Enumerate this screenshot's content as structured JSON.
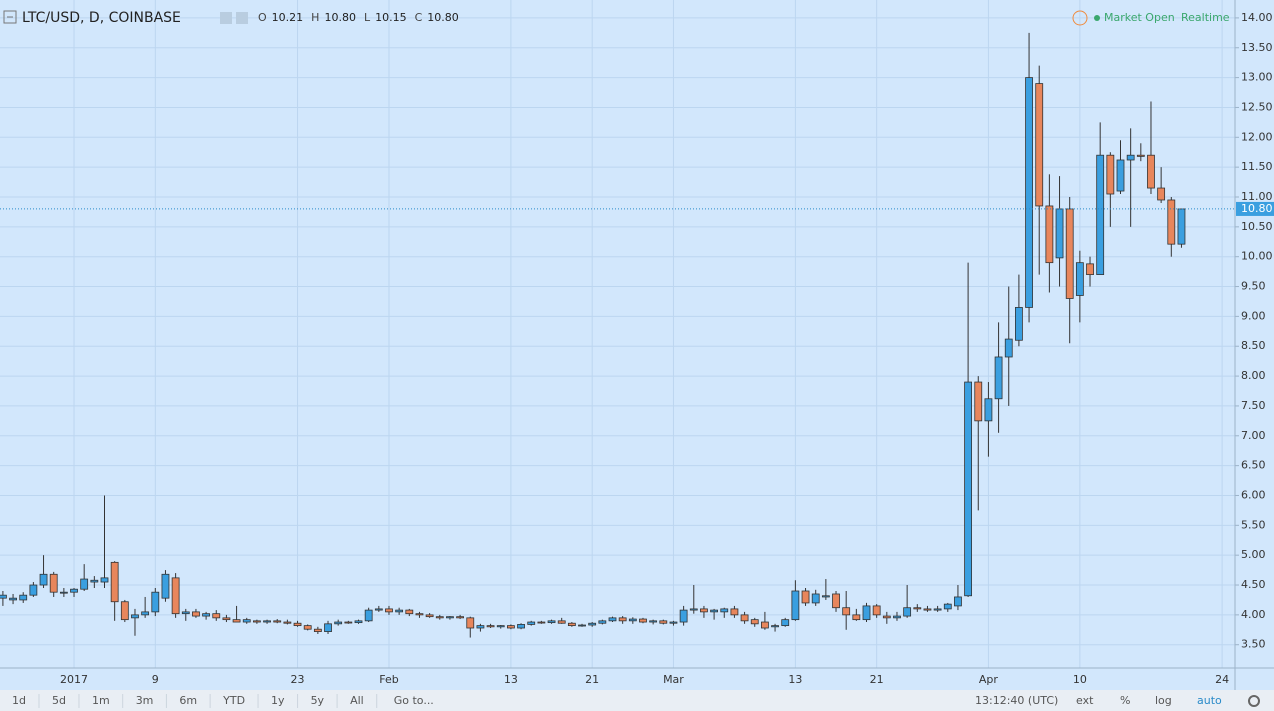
{
  "chart_data": {
    "type": "candlestick",
    "title": "LTC/USD, D, COINBASE",
    "legend": [
      {
        "name": "O",
        "value": 10.21
      },
      {
        "name": "H",
        "value": {
          "value": 10.8,
          "label": "10.80"
        }
      },
      {
        "name": "L",
        "value": 10.15
      },
      {
        "name": "C",
        "value": {
          "value": 10.8,
          "label": "10.80"
        }
      }
    ],
    "status": {
      "market": "Market Open",
      "feed": "Realtime"
    },
    "up_color": "#3a9fe0",
    "down_color": "#e8865c",
    "grid": true,
    "last_price": {
      "value": 10.8,
      "label": "10.80"
    },
    "categories": [
      null,
      null,
      null,
      null,
      null,
      null,
      null,
      "2017",
      null,
      null,
      null,
      null,
      null,
      null,
      null,
      "9",
      null,
      null,
      null,
      null,
      null,
      null,
      null,
      null,
      null,
      null,
      null,
      null,
      null,
      "23",
      null,
      null,
      null,
      null,
      null,
      null,
      null,
      null,
      "Feb",
      null,
      null,
      null,
      null,
      null,
      null,
      null,
      null,
      null,
      null,
      null,
      "13",
      null,
      null,
      null,
      null,
      null,
      null,
      null,
      "21",
      null,
      null,
      null,
      null,
      null,
      null,
      null,
      "Mar",
      null,
      null,
      null,
      null,
      null,
      null,
      null,
      null,
      null,
      null,
      null,
      "13",
      null,
      null,
      null,
      null,
      null,
      null,
      null,
      "21",
      null,
      null,
      null,
      null,
      null,
      null,
      null,
      null,
      null,
      null,
      "Apr",
      null,
      null,
      null,
      null,
      null,
      null,
      null,
      null,
      "10",
      null,
      null,
      null,
      null,
      null,
      null,
      null,
      null,
      null,
      null,
      null,
      null,
      null,
      "24"
    ],
    "open": [
      4.28,
      4.25,
      4.25,
      4.33,
      4.5,
      4.68,
      4.38,
      4.38,
      4.43,
      4.55,
      4.55,
      4.88,
      4.22,
      3.95,
      4.0,
      4.05,
      4.28,
      4.62,
      4.02,
      4.05,
      3.98,
      4.02,
      3.95,
      3.92,
      3.88,
      3.9,
      3.88,
      3.9,
      3.88,
      3.86,
      3.82,
      3.76,
      3.72,
      3.85,
      3.88,
      3.87,
      3.9,
      4.08,
      4.1,
      4.05,
      4.08,
      4.02,
      4.0,
      3.97,
      3.95,
      3.97,
      3.95,
      3.78,
      3.82,
      3.8,
      3.82,
      3.78,
      3.84,
      3.88,
      3.87,
      3.9,
      3.86,
      3.82,
      3.83,
      3.86,
      3.9,
      3.95,
      3.9,
      3.93,
      3.88,
      3.9,
      3.86,
      3.88,
      4.08,
      4.1,
      4.05,
      4.05,
      4.1,
      4.0,
      3.92,
      3.88,
      3.8,
      3.82,
      3.92,
      4.4,
      4.2,
      4.3,
      4.35,
      4.12,
      4.0,
      3.92,
      4.15,
      3.98,
      3.95,
      3.98,
      4.12,
      4.1,
      4.08,
      4.1,
      4.15,
      4.32,
      7.9,
      7.25,
      7.62,
      8.32,
      8.6,
      9.15,
      12.9,
      10.85,
      9.98,
      10.8,
      9.35,
      9.88,
      9.7,
      11.7,
      11.1,
      11.62,
      11.7,
      11.7,
      11.15,
      10.95,
      10.21,
      null,
      null,
      null,
      null
    ],
    "high": [
      4.4,
      4.35,
      4.38,
      4.55,
      5.0,
      4.72,
      4.45,
      4.45,
      4.85,
      4.65,
      6.0,
      4.9,
      4.25,
      4.1,
      4.3,
      4.45,
      4.75,
      4.7,
      4.1,
      4.1,
      4.05,
      4.08,
      4.0,
      4.15,
      3.95,
      3.92,
      3.92,
      3.93,
      3.92,
      3.9,
      3.84,
      3.8,
      3.9,
      3.92,
      3.9,
      3.92,
      4.12,
      4.15,
      4.15,
      4.12,
      4.1,
      4.05,
      4.03,
      4.0,
      3.98,
      4.0,
      3.97,
      3.85,
      3.85,
      3.83,
      3.84,
      3.86,
      3.9,
      3.9,
      3.92,
      3.95,
      3.88,
      3.85,
      3.88,
      3.92,
      3.97,
      3.98,
      3.96,
      3.95,
      3.92,
      3.92,
      3.9,
      4.15,
      4.5,
      4.15,
      4.1,
      4.12,
      4.15,
      4.05,
      3.95,
      4.05,
      3.85,
      3.95,
      4.58,
      4.45,
      4.42,
      4.6,
      4.4,
      4.4,
      4.1,
      4.2,
      4.18,
      4.05,
      4.05,
      4.5,
      4.18,
      4.15,
      4.15,
      4.2,
      4.5,
      9.9,
      8.0,
      7.9,
      8.9,
      9.5,
      9.7,
      13.75,
      13.2,
      11.38,
      11.35,
      11.0,
      10.1,
      10.0,
      12.25,
      11.75,
      11.95,
      12.15,
      11.9,
      12.6,
      11.5,
      11.0,
      10.8,
      null,
      null,
      null,
      null
    ],
    "low": [
      4.15,
      4.18,
      4.2,
      4.3,
      4.45,
      4.3,
      4.3,
      4.3,
      4.4,
      4.45,
      4.45,
      3.9,
      3.88,
      3.65,
      3.95,
      3.98,
      4.22,
      3.95,
      3.9,
      3.95,
      3.92,
      3.9,
      3.88,
      3.88,
      3.85,
      3.85,
      3.85,
      3.86,
      3.84,
      3.8,
      3.74,
      3.68,
      3.68,
      3.82,
      3.85,
      3.85,
      3.88,
      4.05,
      4.0,
      4.0,
      3.98,
      3.95,
      3.95,
      3.92,
      3.92,
      3.93,
      3.62,
      3.72,
      3.78,
      3.77,
      3.76,
      3.76,
      3.82,
      3.85,
      3.85,
      3.85,
      3.8,
      3.8,
      3.8,
      3.84,
      3.88,
      3.85,
      3.85,
      3.86,
      3.84,
      3.84,
      3.82,
      3.82,
      4.02,
      3.95,
      3.92,
      3.95,
      3.95,
      3.85,
      3.8,
      3.75,
      3.72,
      3.8,
      3.9,
      4.15,
      4.15,
      4.25,
      4.05,
      3.75,
      3.9,
      3.88,
      3.95,
      3.85,
      3.9,
      3.95,
      4.05,
      4.05,
      4.05,
      4.05,
      4.08,
      4.3,
      5.75,
      6.65,
      7.05,
      7.5,
      8.5,
      8.9,
      9.7,
      9.4,
      9.5,
      8.55,
      8.9,
      9.5,
      9.7,
      10.5,
      11.05,
      10.5,
      11.6,
      11.05,
      10.9,
      10.0,
      10.15,
      null,
      null,
      null,
      null
    ],
    "close": [
      4.33,
      4.28,
      4.33,
      4.5,
      4.68,
      4.38,
      4.38,
      4.43,
      4.6,
      4.58,
      4.62,
      4.22,
      3.92,
      4.0,
      4.05,
      4.38,
      4.68,
      4.02,
      4.05,
      3.98,
      4.02,
      3.95,
      3.92,
      3.88,
      3.92,
      3.88,
      3.9,
      3.88,
      3.86,
      3.82,
      3.76,
      3.72,
      3.85,
      3.88,
      3.87,
      3.9,
      4.08,
      4.1,
      4.05,
      4.08,
      4.02,
      4.0,
      3.97,
      3.95,
      3.97,
      3.95,
      3.78,
      3.82,
      3.8,
      3.82,
      3.78,
      3.84,
      3.88,
      3.87,
      3.9,
      3.86,
      3.82,
      3.83,
      3.86,
      3.9,
      3.95,
      3.9,
      3.93,
      3.88,
      3.9,
      3.86,
      3.88,
      4.08,
      4.1,
      4.05,
      4.08,
      4.1,
      4.0,
      3.9,
      3.85,
      3.78,
      3.82,
      3.92,
      4.4,
      4.2,
      4.35,
      4.32,
      4.12,
      4.0,
      3.92,
      4.15,
      4.0,
      3.95,
      3.98,
      4.12,
      4.1,
      4.08,
      4.1,
      4.18,
      4.3,
      7.9,
      7.25,
      7.62,
      8.32,
      8.62,
      9.15,
      13.0,
      10.85,
      9.9,
      10.8,
      9.3,
      9.9,
      9.7,
      11.7,
      11.05,
      11.62,
      11.7,
      11.68,
      11.15,
      10.95,
      10.21,
      10.8,
      null,
      null,
      null,
      null
    ],
    "ylim": [
      3.11,
      14.3
    ],
    "yticks": [
      {
        "value": 3.5,
        "label": "3.50"
      },
      {
        "value": 4,
        "label": "4.00"
      },
      {
        "value": 4.5,
        "label": "4.50"
      },
      {
        "value": 5,
        "label": "5.00"
      },
      {
        "value": 5.5,
        "label": "5.50"
      },
      {
        "value": 6,
        "label": "6.00"
      },
      {
        "value": 6.5,
        "label": "6.50"
      },
      {
        "value": 7,
        "label": "7.00"
      },
      {
        "value": 7.5,
        "label": "7.50"
      },
      {
        "value": 8,
        "label": "8.00"
      },
      {
        "value": 8.5,
        "label": "8.50"
      },
      {
        "value": 9,
        "label": "9.00"
      },
      {
        "value": 9.5,
        "label": "9.50"
      },
      {
        "value": 10,
        "label": "10.00"
      },
      {
        "value": 10.5,
        "label": "10.50"
      },
      {
        "value": 11,
        "label": "11.00"
      },
      {
        "value": 11.5,
        "label": "11.50"
      },
      {
        "value": 12,
        "label": "12.00"
      },
      {
        "value": 12.5,
        "label": "12.50"
      },
      {
        "value": 13,
        "label": "13.00"
      },
      {
        "value": 13.5,
        "label": "13.50"
      },
      {
        "value": 14,
        "label": "14.00"
      }
    ]
  },
  "toolbar": {
    "ranges": [
      "1d",
      "5d",
      "1m",
      "3m",
      "6m",
      "YTD",
      "1y",
      "5y",
      "All"
    ],
    "goto": "Go to...",
    "time": "13:12:40 (UTC)",
    "options": [
      "ext",
      "%",
      "log",
      "auto"
    ]
  }
}
